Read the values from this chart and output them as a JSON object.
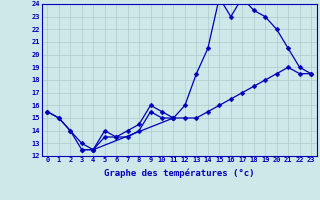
{
  "xlabel": "Graphe des températures (°c)",
  "x_ticks": [
    0,
    1,
    2,
    3,
    4,
    5,
    6,
    7,
    8,
    9,
    10,
    11,
    12,
    13,
    14,
    15,
    16,
    17,
    18,
    19,
    20,
    21,
    22,
    23
  ],
  "ylim": [
    12,
    24
  ],
  "xlim": [
    -0.5,
    23.5
  ],
  "y_ticks": [
    12,
    13,
    14,
    15,
    16,
    17,
    18,
    19,
    20,
    21,
    22,
    23,
    24
  ],
  "bg_color": "#cce8e8",
  "line_color": "#0000bb",
  "line1_x": [
    0,
    1,
    2,
    3,
    4,
    5,
    6,
    7,
    8,
    9,
    10,
    11,
    12,
    13,
    14,
    15,
    16,
    17,
    18,
    19,
    20,
    21,
    22,
    23
  ],
  "line1_y": [
    15.5,
    15.0,
    14.0,
    13.0,
    12.5,
    13.5,
    13.5,
    14.0,
    14.5,
    16.0,
    15.5,
    15.0,
    16.0,
    18.5,
    20.5,
    24.5,
    23.0,
    24.5,
    23.5,
    23.0,
    22.0,
    20.5,
    19.0,
    18.5
  ],
  "line2_x": [
    0,
    1,
    2,
    3,
    4,
    5,
    6,
    7,
    8,
    9,
    10,
    11,
    12,
    13,
    14,
    15,
    16,
    17,
    18,
    19,
    20,
    21,
    22,
    23
  ],
  "line2_y": [
    15.5,
    15.0,
    14.0,
    12.5,
    12.5,
    14.0,
    13.5,
    13.5,
    14.0,
    15.5,
    15.0,
    15.0,
    15.0,
    15.0,
    15.5,
    16.0,
    16.5,
    17.0,
    17.5,
    18.0,
    18.5,
    19.0,
    18.5,
    18.5
  ],
  "line3_x": [
    3,
    4,
    11
  ],
  "line3_y": [
    12.5,
    12.5,
    15.0
  ],
  "markersize": 2.5,
  "linewidth": 0.9,
  "grid_color": "#aacccc",
  "tick_fontsize": 5,
  "xlabel_fontsize": 6.5
}
